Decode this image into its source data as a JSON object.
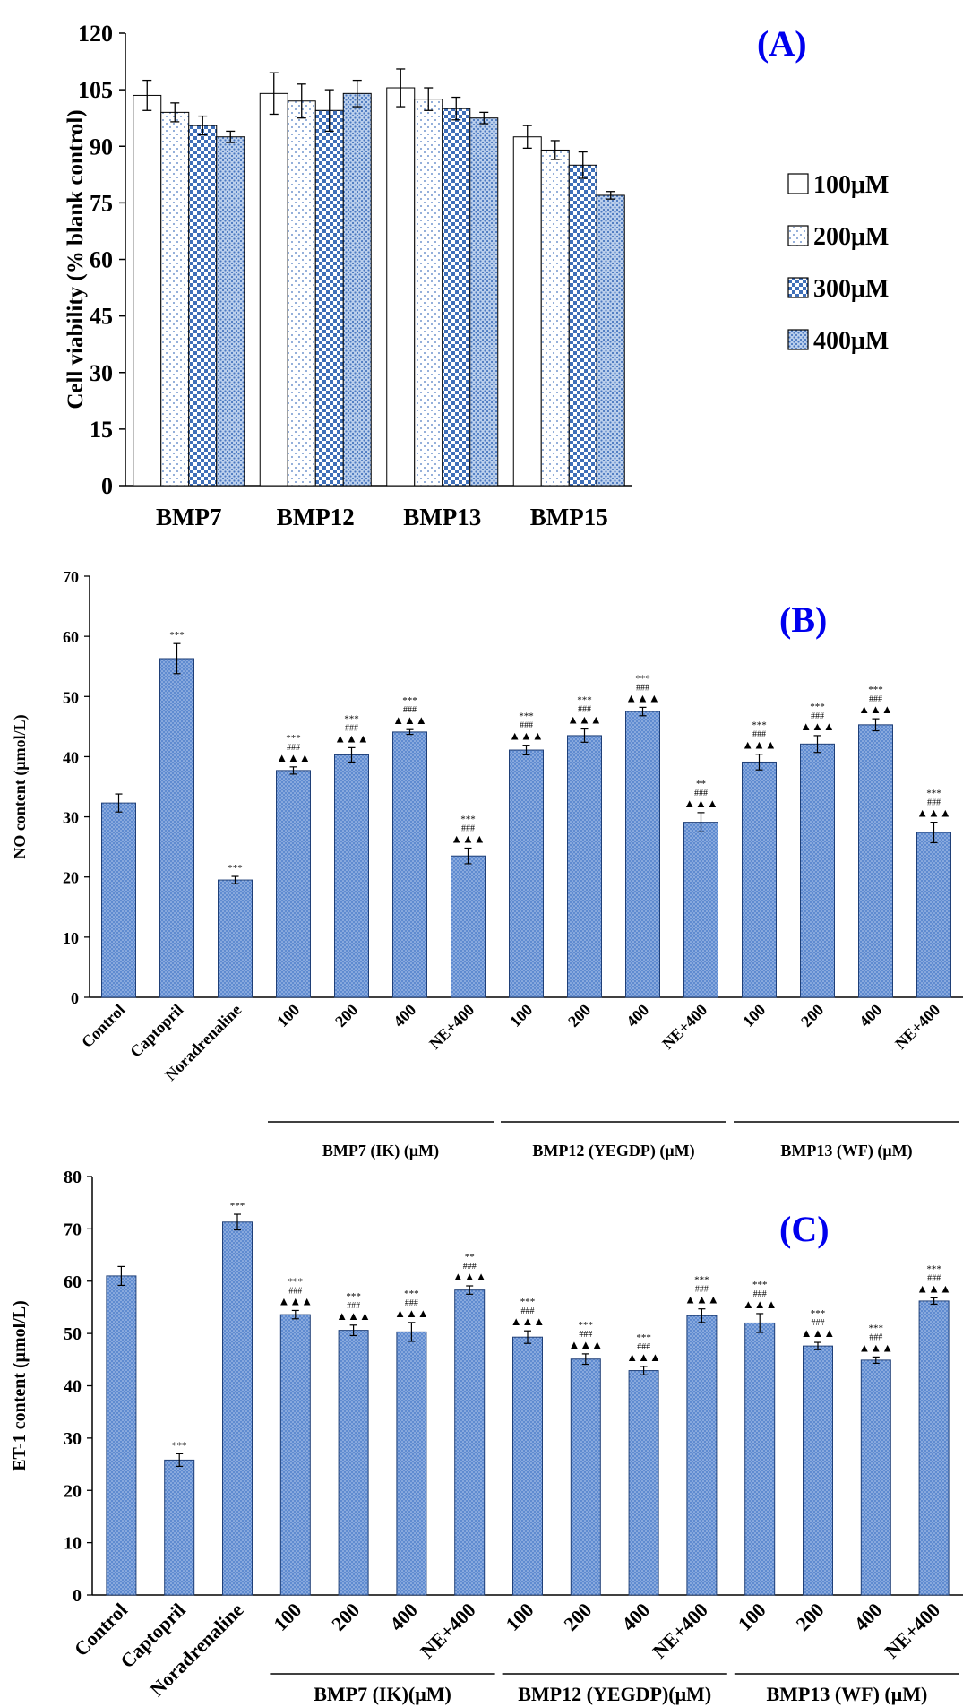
{
  "colors": {
    "bar_blue": "#4a78c0",
    "bar_blue_light": "#8fb0dc",
    "panel_letter": "#0000ee",
    "axis": "#000000"
  },
  "chart_data": [
    {
      "type": "bar",
      "panel_label": "(A)",
      "categories": [
        "BMP7",
        "BMP12",
        "BMP13",
        "BMP15"
      ],
      "ylabel": "Cell viability (% blank control)",
      "xlabel": "",
      "ylim": [
        0,
        120
      ],
      "yticks": [
        0,
        15,
        30,
        45,
        60,
        75,
        90,
        105,
        120
      ],
      "legend_position": "right",
      "series": [
        {
          "name": "100μM",
          "pattern": "blank",
          "values": [
            103.5,
            104,
            105.5,
            92.5
          ],
          "errors": [
            4,
            5.5,
            5,
            3
          ]
        },
        {
          "name": "200μM",
          "pattern": "dots",
          "values": [
            99,
            102,
            102.5,
            89
          ],
          "errors": [
            2.5,
            4.5,
            3,
            2.5
          ]
        },
        {
          "name": "300μM",
          "pattern": "checker",
          "values": [
            95.5,
            99.5,
            100,
            85
          ],
          "errors": [
            2.5,
            5.5,
            3,
            3.5
          ]
        },
        {
          "name": "400μM",
          "pattern": "dense",
          "values": [
            92.5,
            104,
            97.5,
            77
          ],
          "errors": [
            1.5,
            3.5,
            1.5,
            1
          ]
        }
      ]
    },
    {
      "type": "bar",
      "panel_label": "(B)",
      "categories": [
        "Control",
        "Captopril",
        "Noradrenaline",
        "100",
        "200",
        "400",
        "NE+400",
        "100",
        "200",
        "400",
        "NE+400",
        "100",
        "200",
        "400",
        "NE+400"
      ],
      "values": [
        32.3,
        56.3,
        19.5,
        37.7,
        40.3,
        44.1,
        23.5,
        41.1,
        43.5,
        47.5,
        29.1,
        39.1,
        42.1,
        45.3,
        27.4
      ],
      "errors": [
        1.5,
        2.5,
        0.6,
        0.6,
        1.2,
        0.4,
        1.3,
        0.8,
        1.1,
        0.7,
        1.6,
        1.3,
        1.4,
        1.0,
        1.7
      ],
      "star_marks": [
        "",
        "***",
        "***",
        "***",
        "***",
        "***",
        "***",
        "***",
        "***",
        "***",
        "**",
        "***",
        "***",
        "***",
        "***"
      ],
      "hash_marks": [
        "",
        "",
        "",
        "###",
        "###",
        "###",
        "###",
        "###",
        "###",
        "###",
        "###",
        "###",
        "###",
        "###",
        "###"
      ],
      "triangle_marks": [
        "",
        "",
        "",
        "▲▲▲",
        "▲▲▲",
        "▲▲▲",
        "▲▲▲",
        "▲▲▲",
        "▲▲▲",
        "▲▲▲",
        "▲▲▲",
        "▲▲▲",
        "▲▲▲",
        "▲▲▲",
        "▲▲▲"
      ],
      "ylabel": "NO content (μmol/L)",
      "xlabel": "",
      "ylim": [
        0,
        70
      ],
      "yticks": [
        0,
        10,
        20,
        30,
        40,
        50,
        60,
        70
      ],
      "groups": [
        {
          "label": "BMP7 (IK) (μM)",
          "from": 3,
          "to": 6
        },
        {
          "label": "BMP12 (YEGDP) (μM)",
          "from": 7,
          "to": 10
        },
        {
          "label": "BMP13 (WF) (μM)",
          "from": 11,
          "to": 14
        }
      ]
    },
    {
      "type": "bar",
      "panel_label": "(C)",
      "categories": [
        "Control",
        "Captopril",
        "Noradrenaline",
        "100",
        "200",
        "400",
        "NE+400",
        "100",
        "200",
        "400",
        "NE+400",
        "100",
        "200",
        "400",
        "NE+400"
      ],
      "values": [
        61,
        25.8,
        71.3,
        53.6,
        50.6,
        50.3,
        58.3,
        49.3,
        45.1,
        42.9,
        53.4,
        52,
        47.6,
        44.9,
        56.2
      ],
      "errors": [
        1.8,
        1.2,
        1.5,
        0.8,
        1.0,
        1.8,
        0.8,
        1.2,
        1.0,
        0.8,
        1.3,
        1.8,
        0.7,
        0.6,
        0.6
      ],
      "star_marks": [
        "",
        "***",
        "***",
        "***",
        "***",
        "***",
        "**",
        "***",
        "***",
        "***",
        "***",
        "***",
        "***",
        "***",
        "***"
      ],
      "hash_marks": [
        "",
        "",
        "",
        "###",
        "###",
        "###",
        "###",
        "###",
        "###",
        "###",
        "###",
        "###",
        "###",
        "###",
        "###"
      ],
      "triangle_marks": [
        "",
        "",
        "",
        "▲▲▲",
        "▲▲▲",
        "▲▲▲",
        "▲▲▲",
        "▲▲▲",
        "▲▲▲",
        "▲▲▲",
        "▲▲▲",
        "▲▲▲",
        "▲▲▲",
        "▲▲▲",
        "▲▲▲"
      ],
      "ylabel": "ET-1 content (μmol/L)",
      "xlabel": "",
      "ylim": [
        0,
        80
      ],
      "yticks": [
        0,
        10,
        20,
        30,
        40,
        50,
        60,
        70,
        80
      ],
      "groups": [
        {
          "label": "BMP7 (IK)(μM)",
          "from": 3,
          "to": 6
        },
        {
          "label": "BMP12 (YEGDP)(μM)",
          "from": 7,
          "to": 10
        },
        {
          "label": "BMP13 (WF)  (μM)",
          "from": 11,
          "to": 14
        }
      ]
    }
  ]
}
